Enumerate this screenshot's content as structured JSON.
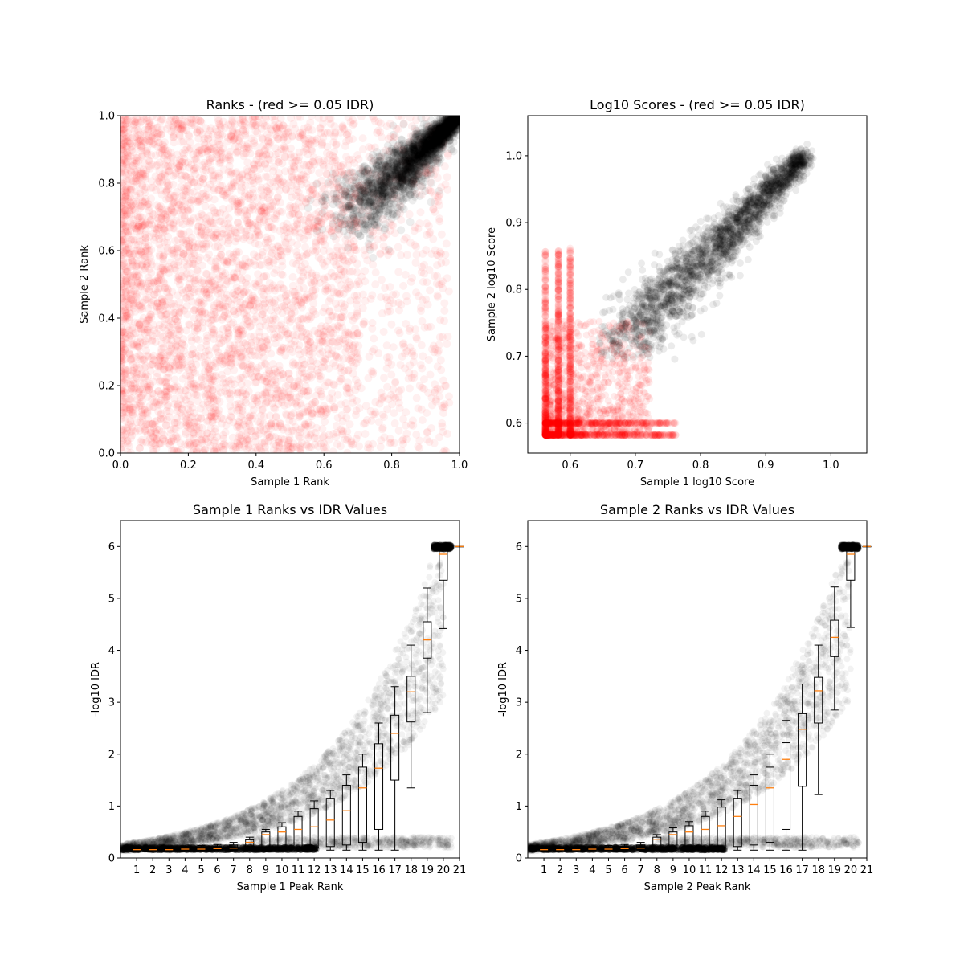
{
  "figure": {
    "colors": {
      "red": "#ff0000",
      "black": "#000000",
      "median": "#ff7f0e",
      "box": "#000000"
    }
  },
  "chart_data": [
    {
      "id": "ranks",
      "type": "scatter",
      "title": "Ranks - (red >= 0.05 IDR)",
      "xlabel": "Sample 1 Rank",
      "ylabel": "Sample 2 Rank",
      "xlim": [
        0,
        1
      ],
      "ylim": [
        0,
        1
      ],
      "xticks": [
        "0.0",
        "0.2",
        "0.4",
        "0.6",
        "0.8",
        "1.0"
      ],
      "yticks": [
        "0.0",
        "0.2",
        "0.4",
        "0.6",
        "0.8",
        "1.0"
      ],
      "series": [
        {
          "color": "#ff0000",
          "alpha": 0.06,
          "description_region": "broad cloud over x 0–0.95, y 0–1"
        },
        {
          "color": "#000000",
          "alpha": 0.06,
          "description_region": "tight diagonal cluster x 0.64–1.0, y 0.64–1.0"
        }
      ]
    },
    {
      "id": "log10",
      "type": "scatter",
      "title": "Log10 Scores - (red >= 0.05 IDR)",
      "xlabel": "Sample 1 log10 Score",
      "ylabel": "Sample 2 log10 Score",
      "xlim": [
        0.535,
        1.055
      ],
      "ylim": [
        0.555,
        1.06
      ],
      "xticks": [
        "0.6",
        "0.7",
        "0.8",
        "0.9",
        "1.0"
      ],
      "yticks": [
        "0.6",
        "0.7",
        "0.8",
        "0.9",
        "1.0"
      ],
      "series": [
        {
          "color": "#ff0000",
          "alpha": 0.08
        },
        {
          "color": "#000000",
          "alpha": 0.08
        }
      ]
    },
    {
      "id": "s1idr",
      "type": "box",
      "title": "Sample 1 Ranks vs IDR Values",
      "xlabel": "Sample 1 Peak Rank",
      "ylabel": "-log10 IDR",
      "xlim": [
        0,
        21
      ],
      "ylim": [
        0,
        6.5
      ],
      "xticks": [
        "1",
        "2",
        "3",
        "4",
        "5",
        "6",
        "7",
        "8",
        "9",
        "10",
        "11",
        "12",
        "13",
        "14",
        "15",
        "16",
        "17",
        "18",
        "19",
        "20",
        "21"
      ],
      "yticks": [
        "0",
        "1",
        "2",
        "3",
        "4",
        "5",
        "6"
      ],
      "boxes": [
        {
          "x": 1,
          "q1": 0.16,
          "med": 0.16,
          "q3": 0.17,
          "lo": 0.15,
          "hi": 0.18
        },
        {
          "x": 2,
          "q1": 0.16,
          "med": 0.16,
          "q3": 0.17,
          "lo": 0.15,
          "hi": 0.19
        },
        {
          "x": 3,
          "q1": 0.16,
          "med": 0.16,
          "q3": 0.18,
          "lo": 0.15,
          "hi": 0.2
        },
        {
          "x": 4,
          "q1": 0.16,
          "med": 0.17,
          "q3": 0.19,
          "lo": 0.15,
          "hi": 0.22
        },
        {
          "x": 5,
          "q1": 0.16,
          "med": 0.17,
          "q3": 0.2,
          "lo": 0.15,
          "hi": 0.24
        },
        {
          "x": 6,
          "q1": 0.16,
          "med": 0.18,
          "q3": 0.22,
          "lo": 0.15,
          "hi": 0.26
        },
        {
          "x": 7,
          "q1": 0.16,
          "med": 0.19,
          "q3": 0.25,
          "lo": 0.15,
          "hi": 0.3
        },
        {
          "x": 8,
          "q1": 0.17,
          "med": 0.3,
          "q3": 0.35,
          "lo": 0.15,
          "hi": 0.4
        },
        {
          "x": 9,
          "q1": 0.18,
          "med": 0.45,
          "q3": 0.5,
          "lo": 0.15,
          "hi": 0.55
        },
        {
          "x": 10,
          "q1": 0.19,
          "med": 0.5,
          "q3": 0.6,
          "lo": 0.15,
          "hi": 0.68
        },
        {
          "x": 11,
          "q1": 0.2,
          "med": 0.55,
          "q3": 0.8,
          "lo": 0.15,
          "hi": 0.9
        },
        {
          "x": 12,
          "q1": 0.2,
          "med": 0.6,
          "q3": 0.95,
          "lo": 0.15,
          "hi": 1.1
        },
        {
          "x": 13,
          "q1": 0.22,
          "med": 0.73,
          "q3": 1.15,
          "lo": 0.15,
          "hi": 1.3
        },
        {
          "x": 14,
          "q1": 0.25,
          "med": 0.91,
          "q3": 1.4,
          "lo": 0.15,
          "hi": 1.6
        },
        {
          "x": 15,
          "q1": 0.3,
          "med": 1.35,
          "q3": 1.75,
          "lo": 0.15,
          "hi": 2.0
        },
        {
          "x": 16,
          "q1": 0.55,
          "med": 1.73,
          "q3": 2.2,
          "lo": 0.15,
          "hi": 2.6
        },
        {
          "x": 17,
          "q1": 1.5,
          "med": 2.4,
          "q3": 2.75,
          "lo": 0.15,
          "hi": 3.3
        },
        {
          "x": 18,
          "q1": 2.62,
          "med": 3.2,
          "q3": 3.5,
          "lo": 1.35,
          "hi": 4.1
        },
        {
          "x": 19,
          "q1": 3.85,
          "med": 4.2,
          "q3": 4.55,
          "lo": 2.8,
          "hi": 5.2
        },
        {
          "x": 20,
          "q1": 5.35,
          "med": 5.85,
          "q3": 6.0,
          "lo": 4.42,
          "hi": 6.0
        },
        {
          "x": 21,
          "q1": 6.0,
          "med": 6.0,
          "q3": 6.0,
          "lo": 6.0,
          "hi": 6.0
        }
      ]
    },
    {
      "id": "s2idr",
      "type": "box",
      "title": "Sample 2 Ranks vs IDR Values",
      "xlabel": "Sample 2 Peak Rank",
      "ylabel": "-log10 IDR",
      "xlim": [
        0,
        21
      ],
      "ylim": [
        0,
        6.5
      ],
      "xticks": [
        "1",
        "2",
        "3",
        "4",
        "5",
        "6",
        "7",
        "8",
        "9",
        "10",
        "11",
        "12",
        "13",
        "14",
        "15",
        "16",
        "17",
        "18",
        "19",
        "20",
        "21"
      ],
      "yticks": [
        "0",
        "1",
        "2",
        "3",
        "4",
        "5",
        "6"
      ],
      "boxes": [
        {
          "x": 1,
          "q1": 0.16,
          "med": 0.16,
          "q3": 0.17,
          "lo": 0.15,
          "hi": 0.18
        },
        {
          "x": 2,
          "q1": 0.16,
          "med": 0.16,
          "q3": 0.17,
          "lo": 0.15,
          "hi": 0.19
        },
        {
          "x": 3,
          "q1": 0.16,
          "med": 0.16,
          "q3": 0.18,
          "lo": 0.15,
          "hi": 0.2
        },
        {
          "x": 4,
          "q1": 0.16,
          "med": 0.17,
          "q3": 0.19,
          "lo": 0.15,
          "hi": 0.22
        },
        {
          "x": 5,
          "q1": 0.16,
          "med": 0.17,
          "q3": 0.2,
          "lo": 0.15,
          "hi": 0.24
        },
        {
          "x": 6,
          "q1": 0.16,
          "med": 0.18,
          "q3": 0.22,
          "lo": 0.15,
          "hi": 0.26
        },
        {
          "x": 7,
          "q1": 0.16,
          "med": 0.19,
          "q3": 0.25,
          "lo": 0.15,
          "hi": 0.3
        },
        {
          "x": 8,
          "q1": 0.17,
          "med": 0.36,
          "q3": 0.4,
          "lo": 0.15,
          "hi": 0.45
        },
        {
          "x": 9,
          "q1": 0.18,
          "med": 0.45,
          "q3": 0.5,
          "lo": 0.15,
          "hi": 0.58
        },
        {
          "x": 10,
          "q1": 0.19,
          "med": 0.5,
          "q3": 0.62,
          "lo": 0.15,
          "hi": 0.7
        },
        {
          "x": 11,
          "q1": 0.2,
          "med": 0.55,
          "q3": 0.8,
          "lo": 0.15,
          "hi": 0.9
        },
        {
          "x": 12,
          "q1": 0.2,
          "med": 0.62,
          "q3": 0.98,
          "lo": 0.15,
          "hi": 1.12
        },
        {
          "x": 13,
          "q1": 0.22,
          "med": 0.8,
          "q3": 1.15,
          "lo": 0.15,
          "hi": 1.3
        },
        {
          "x": 14,
          "q1": 0.25,
          "med": 1.03,
          "q3": 1.4,
          "lo": 0.15,
          "hi": 1.6
        },
        {
          "x": 15,
          "q1": 0.3,
          "med": 1.35,
          "q3": 1.75,
          "lo": 0.15,
          "hi": 2.0
        },
        {
          "x": 16,
          "q1": 0.55,
          "med": 1.9,
          "q3": 2.22,
          "lo": 0.15,
          "hi": 2.65
        },
        {
          "x": 17,
          "q1": 1.38,
          "med": 2.48,
          "q3": 2.78,
          "lo": 0.15,
          "hi": 3.35
        },
        {
          "x": 18,
          "q1": 2.6,
          "med": 3.22,
          "q3": 3.48,
          "lo": 1.22,
          "hi": 4.1
        },
        {
          "x": 19,
          "q1": 3.88,
          "med": 4.25,
          "q3": 4.58,
          "lo": 2.85,
          "hi": 5.22
        },
        {
          "x": 20,
          "q1": 5.35,
          "med": 5.85,
          "q3": 6.0,
          "lo": 4.44,
          "hi": 6.0
        },
        {
          "x": 21,
          "q1": 6.0,
          "med": 6.0,
          "q3": 6.0,
          "lo": 6.0,
          "hi": 6.0
        }
      ]
    }
  ]
}
